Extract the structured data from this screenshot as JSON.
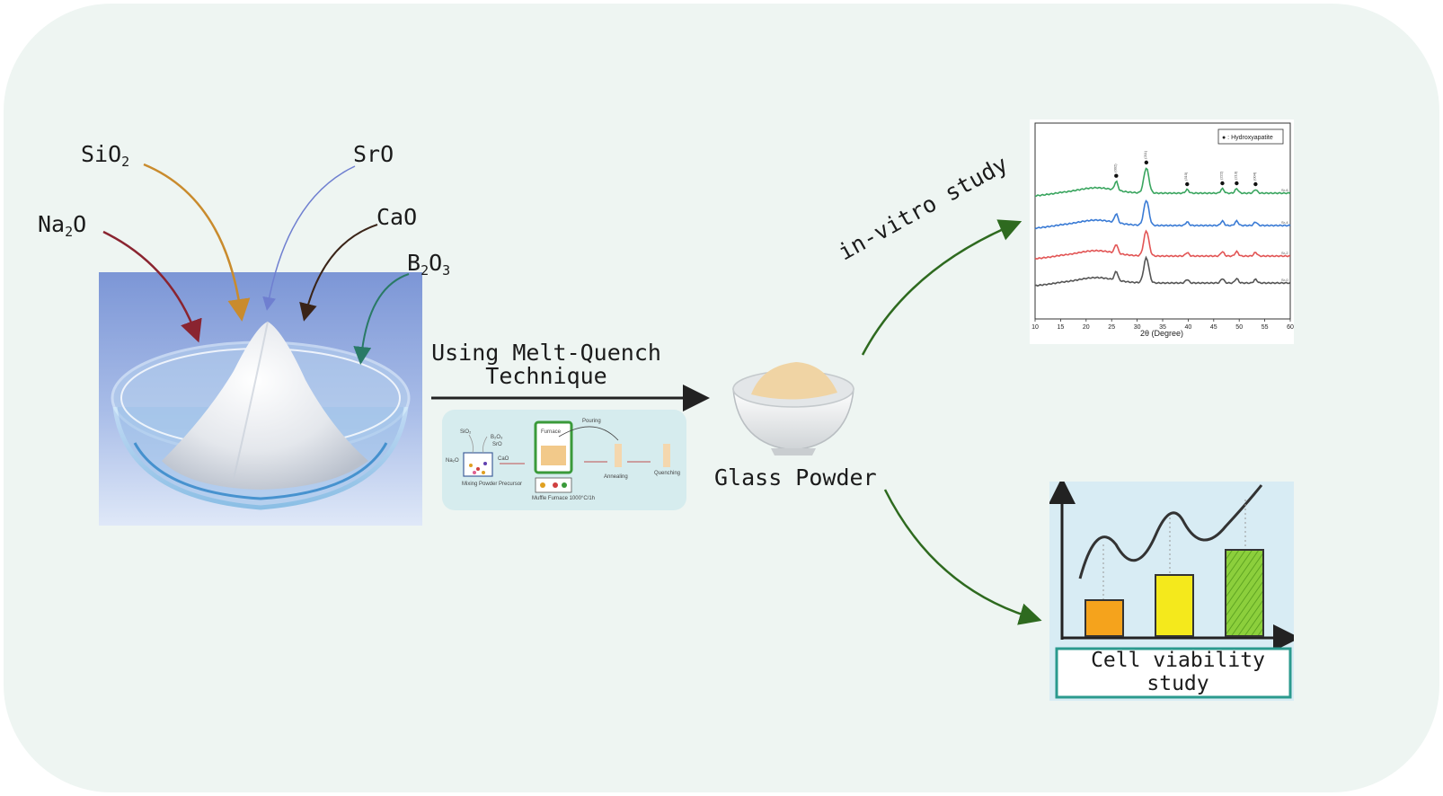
{
  "oxides": {
    "sio2": {
      "base": "SiO",
      "sub": "2"
    },
    "sro": "SrO",
    "na2o": {
      "base": "Na",
      "sub": "2",
      "tail": "O"
    },
    "cao": "CaO",
    "b2o3": {
      "b": "B",
      "s1": "2",
      "o": "O",
      "s2": "3"
    }
  },
  "process": {
    "line1": "Using Melt-Quench",
    "line2": "Technique"
  },
  "product": "Glass Powder",
  "branches": {
    "invitro": "in-vitro study",
    "cell_line1": "Cell viability",
    "cell_line2": "study"
  },
  "xrd_chart": {
    "xlabel": "2θ (Degree)",
    "legend": "● : Hydroxyapatite",
    "peak_labels": [
      "(002)",
      "(211)",
      "(310)",
      "(222)",
      "(213)",
      "(004)"
    ],
    "series_labels": [
      "Sr-0",
      "Sr-2",
      "Sr-4",
      "Sr-6"
    ]
  },
  "inset": {
    "pouring": "Pouring",
    "furnace": "Furnace",
    "left_labels": [
      "SiO₂",
      "B₂O₃",
      "SrO",
      "Na₂O",
      "CaO"
    ],
    "captions": [
      "Mixing Powder Precursor",
      "Muffle Furnace 1000°C/1h",
      "Annealing",
      "Quenching"
    ]
  },
  "colors": {
    "background_panel": "#eef5f2",
    "arrow_black": "#222222",
    "arrow_green": "#2e6a1f",
    "xrd_green": "#3aa55f",
    "xrd_blue": "#3a7bd5",
    "xrd_red": "#e25555",
    "xrd_gray": "#555555"
  },
  "chart_data": {
    "type": "line",
    "xlabel": "2θ (Degree)",
    "ylabel": "",
    "xlim": [
      10,
      60
    ],
    "x_ticks": [
      10,
      15,
      20,
      25,
      30,
      35,
      40,
      45,
      50,
      55,
      60
    ],
    "legend": "● : Hydroxyapatite",
    "peaks_2theta": [
      25.9,
      31.8,
      39.8,
      46.7,
      49.5,
      53.2
    ],
    "peak_labels": [
      "(002)",
      "(211)",
      "(310)",
      "(222)",
      "(213)",
      "(004)"
    ],
    "series": [
      {
        "name": "Sr-0",
        "color": "#555555"
      },
      {
        "name": "Sr-2",
        "color": "#e25555"
      },
      {
        "name": "Sr-4",
        "color": "#3a7bd5"
      },
      {
        "name": "Sr-6",
        "color": "#3aa55f"
      }
    ]
  }
}
